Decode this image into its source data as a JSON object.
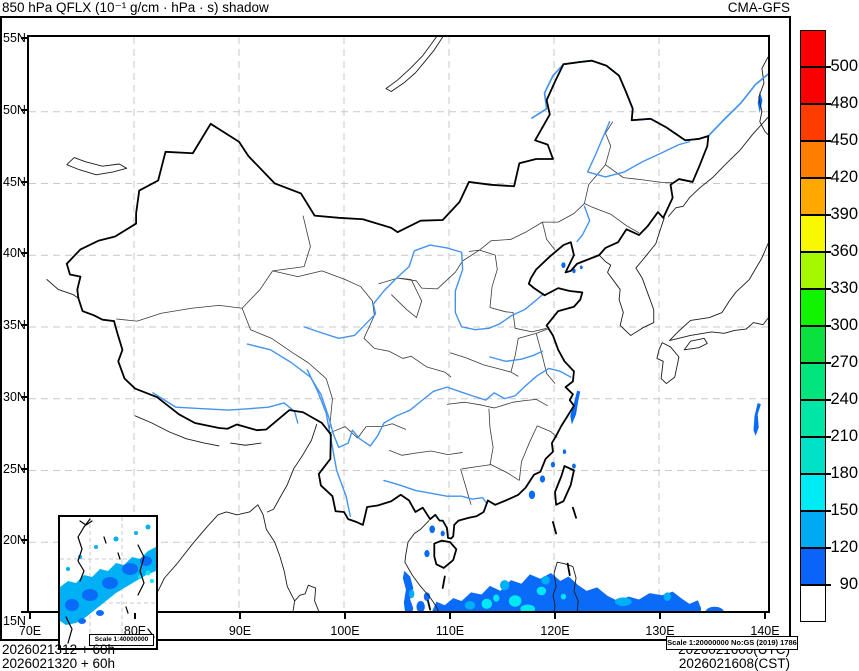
{
  "header": {
    "title": "850 hPa QFLX (10⁻¹ g/cm · hPa · s) shadow",
    "model": "CMA-GFS"
  },
  "axes": {
    "lat": [
      "55N",
      "50N",
      "45N",
      "40N",
      "35N",
      "30N",
      "25N",
      "20N",
      "15N"
    ],
    "lon": [
      "70E",
      "80E",
      "90E",
      "100E",
      "110E",
      "120E",
      "130E",
      "140E"
    ]
  },
  "colorbar": {
    "labels_top_to_bottom": [
      "500",
      "480",
      "450",
      "420",
      "390",
      "360",
      "330",
      "300",
      "270",
      "240",
      "210",
      "180",
      "150",
      "120",
      "90"
    ],
    "colors_top_to_bottom": [
      "#fa0000",
      "#fa0000",
      "#ff3c00",
      "#ff7e00",
      "#ffa800",
      "#f8f800",
      "#a4f800",
      "#10f400",
      "#0ae13e",
      "#00e57c",
      "#00e6a6",
      "#00e2c8",
      "#00ecf4",
      "#00aaf2",
      "#0a64fa",
      "#ffffff"
    ]
  },
  "map": {
    "scale_note": "Scale 1:20000000 No:GS (2019) 1786",
    "inset_scale_note": "Scale 1:40000000"
  },
  "footer": {
    "left_line1": "2026021312 + 60h",
    "left_line2": "2026021320 + 60h",
    "right_line1": "2026021600(UTC)",
    "right_line2": "2026021608(CST)"
  },
  "chart_data": {
    "type": "heatmap",
    "title": "850 hPa QFLX (10⁻¹ g/cm · hPa · s) shadow",
    "model": "CMA-GFS",
    "units": "10⁻¹ g/cm · hPa · s",
    "lon_range_deg_e": [
      70,
      140
    ],
    "lat_range_deg_n": [
      15,
      55
    ],
    "lon_ticks": [
      "70E",
      "80E",
      "90E",
      "100E",
      "110E",
      "120E",
      "130E",
      "140E"
    ],
    "lat_ticks": [
      "55N",
      "50N",
      "45N",
      "40N",
      "35N",
      "30N",
      "25N",
      "20N",
      "15N"
    ],
    "shading_levels": [
      90,
      120,
      150,
      180,
      210,
      240,
      270,
      300,
      330,
      360,
      390,
      420,
      450,
      480,
      500
    ],
    "palette_low_to_high": [
      "#ffffff",
      "#0a64fa",
      "#00aaf2",
      "#00ecf4",
      "#00e2c8",
      "#00e6a6",
      "#00e57c",
      "#0ae13e",
      "#10f400",
      "#a4f800",
      "#f8f800",
      "#ffa800",
      "#ff7e00",
      "#ff3c00",
      "#fa0000",
      "#fa0000"
    ],
    "forecast_init_utc": "2026021312 + 60h",
    "forecast_init_cst": "2026021320 + 60h",
    "valid_utc": "2026021600(UTC)",
    "valid_cst": "2026021608(CST)",
    "shaded_area_summary": "QFLX 90–180 shading over the South China Sea band near 15–18N from ~105E to ~134E (cyan cores 150–180 near 113–121E), along the central Vietnam coast and Gulf of Tonkin, small spots in the Taiwan Strait, along the Zhejiang coast, in Bohai, and near the eastern map edge; remainder of domain below 90 (white)."
  }
}
